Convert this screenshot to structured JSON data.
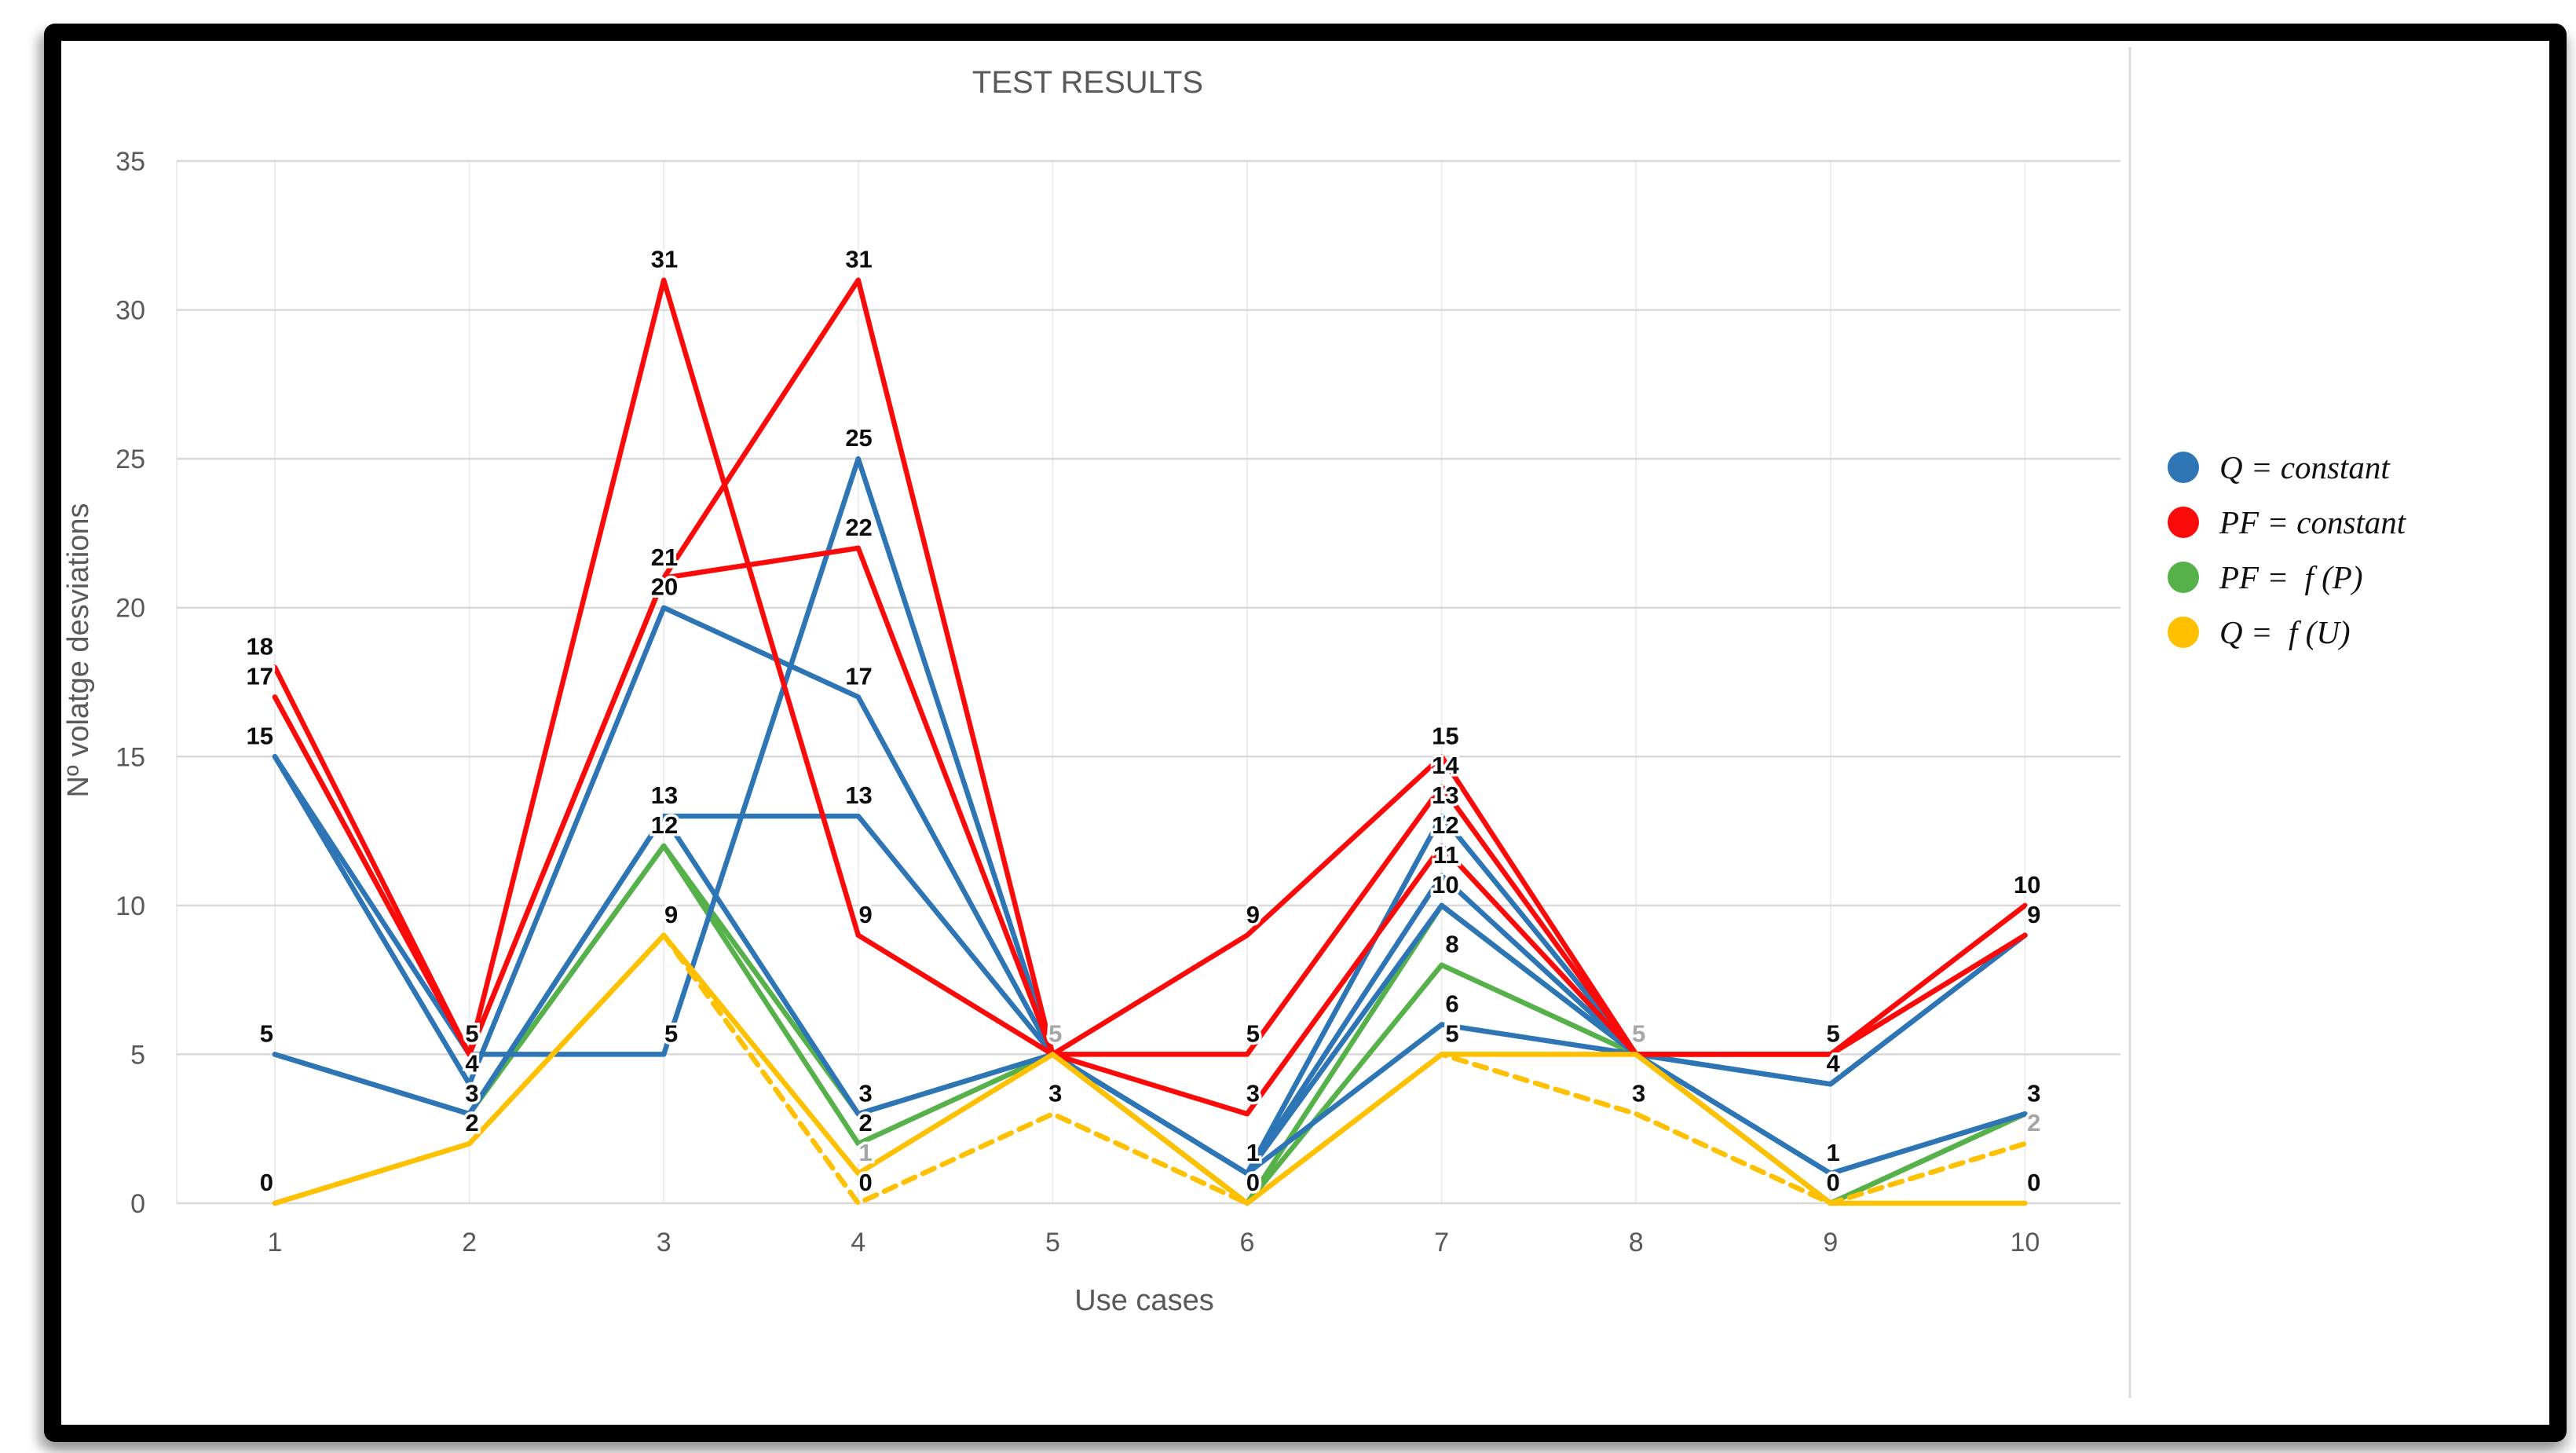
{
  "window": {
    "app_title": "TEST RESULTS"
  },
  "colors": {
    "blue": "#2E75B6",
    "red": "#FB0A0A",
    "green": "#56B14B",
    "yellow": "#FFC000",
    "grid": "#D9D9D9",
    "grid_vertical": "#ECECEC",
    "axis_text": "#595959",
    "label_black": "#0D0D0D",
    "label_gray": "#A6A6A6",
    "frame": "#000000"
  },
  "legend": {
    "items": [
      {
        "label": "Q = constant",
        "color_key": "blue"
      },
      {
        "label": "PF = constant",
        "color_key": "red"
      },
      {
        "label": "PF =  f (P)",
        "color_key": "green"
      },
      {
        "label": "Q =  f (U)",
        "color_key": "yellow"
      }
    ]
  },
  "chart_data": {
    "type": "line",
    "title": "TEST RESULTS",
    "xlabel": "Use cases",
    "ylabel": "Nº volatge desviations",
    "x": [
      1,
      2,
      3,
      4,
      5,
      6,
      7,
      8,
      9,
      10
    ],
    "xticks": [
      "1",
      "2",
      "3",
      "4",
      "5",
      "6",
      "7",
      "8",
      "9",
      "10"
    ],
    "yticks": [
      0,
      5,
      10,
      15,
      20,
      25,
      30,
      35
    ],
    "ylim": [
      0,
      35
    ],
    "grid": true,
    "legend_position": "right",
    "series": [
      {
        "name": "PF = f (P) run 1",
        "color_key": "green",
        "dash": false,
        "values": [
          null,
          3,
          12,
          3,
          5,
          0,
          10,
          5,
          0,
          3
        ]
      },
      {
        "name": "PF = f (P) run 2",
        "color_key": "green",
        "dash": false,
        "values": [
          null,
          3,
          12,
          2,
          5,
          0,
          8,
          5,
          0,
          3
        ]
      },
      {
        "name": "Q = constant run 1",
        "color_key": "blue",
        "dash": false,
        "values": [
          15,
          4,
          20,
          17,
          5,
          1,
          13,
          5,
          4,
          9
        ]
      },
      {
        "name": "Q = constant run 2",
        "color_key": "blue",
        "dash": false,
        "values": [
          5,
          3,
          13,
          13,
          5,
          1,
          11,
          5,
          4,
          9
        ]
      },
      {
        "name": "Q = constant run 3",
        "color_key": "blue",
        "dash": false,
        "values": [
          15,
          5,
          5,
          25,
          5,
          1,
          10,
          5,
          1,
          3
        ]
      },
      {
        "name": "Q = constant run 4",
        "color_key": "blue",
        "dash": false,
        "values": [
          5,
          3,
          13,
          3,
          5,
          1,
          6,
          5,
          1,
          3
        ]
      },
      {
        "name": "PF = constant run 1",
        "color_key": "red",
        "dash": false,
        "values": [
          17,
          5,
          31,
          9,
          5,
          9,
          15,
          5,
          5,
          10
        ]
      },
      {
        "name": "PF = constant run 2",
        "color_key": "red",
        "dash": false,
        "values": [
          18,
          5,
          21,
          31,
          5,
          5,
          14,
          5,
          5,
          9
        ]
      },
      {
        "name": "PF = constant run 3",
        "color_key": "red",
        "dash": false,
        "values": [
          17,
          5,
          21,
          22,
          5,
          3,
          12,
          5,
          5,
          9
        ]
      },
      {
        "name": "Q = f (U) run 1",
        "color_key": "yellow",
        "dash": false,
        "values": [
          0,
          2,
          9,
          1,
          5,
          0,
          5,
          5,
          0,
          0
        ]
      },
      {
        "name": "Q = f (U) run 2",
        "color_key": "yellow",
        "dash": true,
        "values": [
          0,
          2,
          9,
          0,
          3,
          0,
          5,
          3,
          0,
          2
        ]
      }
    ],
    "point_labels": [
      {
        "x": 1,
        "v": 18,
        "text": "18",
        "shade": "black"
      },
      {
        "x": 1,
        "v": 17,
        "text": "17",
        "shade": "black"
      },
      {
        "x": 1,
        "v": 15,
        "text": "15",
        "shade": "black"
      },
      {
        "x": 1,
        "v": 5,
        "text": "5",
        "shade": "black"
      },
      {
        "x": 1,
        "v": 0,
        "text": "0",
        "shade": "black"
      },
      {
        "x": 2,
        "v": 5,
        "text": "5",
        "shade": "black"
      },
      {
        "x": 2,
        "v": 4,
        "text": "4",
        "shade": "black"
      },
      {
        "x": 2,
        "v": 3,
        "text": "3",
        "shade": "black"
      },
      {
        "x": 2,
        "v": 2,
        "text": "2",
        "shade": "black"
      },
      {
        "x": 3,
        "v": 31,
        "text": "31",
        "shade": "black"
      },
      {
        "x": 3,
        "v": 21,
        "text": "21",
        "shade": "black"
      },
      {
        "x": 3,
        "v": 20,
        "text": "20",
        "shade": "black"
      },
      {
        "x": 3,
        "v": 13,
        "text": "13",
        "shade": "black"
      },
      {
        "x": 3,
        "v": 12,
        "text": "12",
        "shade": "black"
      },
      {
        "x": 3,
        "v": 9,
        "text": "9",
        "shade": "black"
      },
      {
        "x": 3,
        "v": 5,
        "text": "5",
        "shade": "black"
      },
      {
        "x": 4,
        "v": 31,
        "text": "31",
        "shade": "black"
      },
      {
        "x": 4,
        "v": 25,
        "text": "25",
        "shade": "black"
      },
      {
        "x": 4,
        "v": 22,
        "text": "22",
        "shade": "black"
      },
      {
        "x": 4,
        "v": 17,
        "text": "17",
        "shade": "black"
      },
      {
        "x": 4,
        "v": 13,
        "text": "13",
        "shade": "black"
      },
      {
        "x": 4,
        "v": 9,
        "text": "9",
        "shade": "black"
      },
      {
        "x": 4,
        "v": 3,
        "text": "3",
        "shade": "black"
      },
      {
        "x": 4,
        "v": 2,
        "text": "2",
        "shade": "black"
      },
      {
        "x": 4,
        "v": 1,
        "text": "1",
        "shade": "gray"
      },
      {
        "x": 4,
        "v": 0,
        "text": "0",
        "shade": "black"
      },
      {
        "x": 5,
        "v": 5,
        "text": "5",
        "shade": "gray"
      },
      {
        "x": 5,
        "v": 3,
        "text": "3",
        "shade": "black"
      },
      {
        "x": 6,
        "v": 9,
        "text": "9",
        "shade": "black"
      },
      {
        "x": 6,
        "v": 5,
        "text": "5",
        "shade": "black"
      },
      {
        "x": 6,
        "v": 3,
        "text": "3",
        "shade": "black"
      },
      {
        "x": 6,
        "v": 1,
        "text": "1",
        "shade": "black"
      },
      {
        "x": 6,
        "v": 0,
        "text": "0",
        "shade": "black"
      },
      {
        "x": 7,
        "v": 15,
        "text": "15",
        "shade": "black"
      },
      {
        "x": 7,
        "v": 14,
        "text": "14",
        "shade": "black"
      },
      {
        "x": 7,
        "v": 13,
        "text": "13",
        "shade": "black"
      },
      {
        "x": 7,
        "v": 12,
        "text": "12",
        "shade": "black"
      },
      {
        "x": 7,
        "v": 11,
        "text": "11",
        "shade": "black"
      },
      {
        "x": 7,
        "v": 10,
        "text": "10",
        "shade": "black"
      },
      {
        "x": 7,
        "v": 8,
        "text": "8",
        "shade": "black"
      },
      {
        "x": 7,
        "v": 6,
        "text": "6",
        "shade": "black"
      },
      {
        "x": 7,
        "v": 5,
        "text": "5",
        "shade": "black"
      },
      {
        "x": 8,
        "v": 5,
        "text": "5",
        "shade": "gray"
      },
      {
        "x": 8,
        "v": 3,
        "text": "3",
        "shade": "black"
      },
      {
        "x": 9,
        "v": 5,
        "text": "5",
        "shade": "black"
      },
      {
        "x": 9,
        "v": 4,
        "text": "4",
        "shade": "black"
      },
      {
        "x": 9,
        "v": 1,
        "text": "1",
        "shade": "black"
      },
      {
        "x": 9,
        "v": 0,
        "text": "0",
        "shade": "black"
      },
      {
        "x": 10,
        "v": 10,
        "text": "10",
        "shade": "black"
      },
      {
        "x": 10,
        "v": 9,
        "text": "9",
        "shade": "black"
      },
      {
        "x": 10,
        "v": 3,
        "text": "3",
        "shade": "black"
      },
      {
        "x": 10,
        "v": 2,
        "text": "2",
        "shade": "gray"
      },
      {
        "x": 10,
        "v": 0,
        "text": "0",
        "shade": "black"
      }
    ]
  }
}
